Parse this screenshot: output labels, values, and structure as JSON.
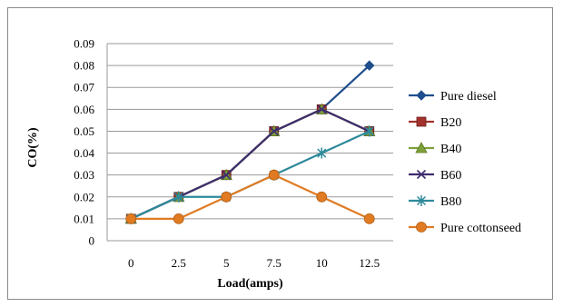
{
  "chart_data": {
    "type": "line",
    "title": "",
    "xlabel": "Load(amps)",
    "ylabel": "CO(%)",
    "categories": [
      "0",
      "2.5",
      "5",
      "7.5",
      "10",
      "12.5"
    ],
    "ylim": [
      0,
      0.09
    ],
    "yticks": [
      "0",
      "0.01",
      "0.02",
      "0.03",
      "0.04",
      "0.05",
      "0.06",
      "0.07",
      "0.08",
      "0.09"
    ],
    "grid": true,
    "legend_position": "right",
    "series": [
      {
        "name": "Pure diesel",
        "values": [
          0.01,
          0.02,
          0.03,
          0.05,
          0.06,
          0.08
        ],
        "color": "#1F4E8C",
        "marker": "diamond"
      },
      {
        "name": "B20",
        "values": [
          0.01,
          0.02,
          0.03,
          0.05,
          0.06,
          0.05
        ],
        "color": "#A3312B",
        "marker": "square"
      },
      {
        "name": "B40",
        "values": [
          0.01,
          0.02,
          0.03,
          0.05,
          0.06,
          0.05
        ],
        "color": "#7FA03A",
        "marker": "triangle"
      },
      {
        "name": "B60",
        "values": [
          0.01,
          0.02,
          0.03,
          0.05,
          0.06,
          0.05
        ],
        "color": "#3E2D6E",
        "marker": "x"
      },
      {
        "name": "B80",
        "values": [
          0.01,
          0.02,
          0.02,
          0.03,
          0.04,
          0.05
        ],
        "color": "#2E8A9B",
        "marker": "star"
      },
      {
        "name": "Pure cottonseed",
        "values": [
          0.01,
          0.01,
          0.02,
          0.03,
          0.02,
          0.01
        ],
        "color": "#E07B22",
        "marker": "circle"
      }
    ]
  }
}
